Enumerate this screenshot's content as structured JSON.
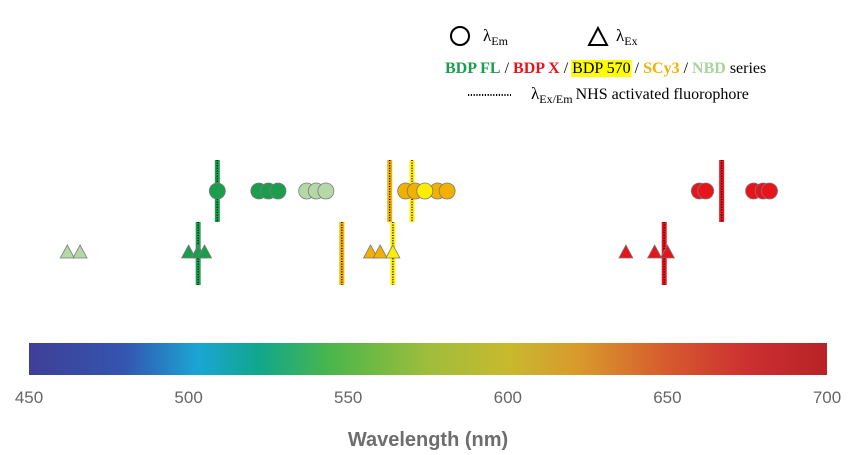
{
  "chart_data": {
    "type": "scatter",
    "xlabel": "Wavelength (nm)",
    "xlim": [
      450,
      700
    ],
    "xticks": [
      450,
      500,
      550,
      600,
      650,
      700
    ],
    "legend": {
      "placement": "top-right",
      "marker_entries": [
        {
          "marker": "circle",
          "symbol": "λ",
          "subscript": "Em"
        },
        {
          "marker": "triangle",
          "symbol": "λ",
          "subscript": "Ex"
        }
      ],
      "series_line": [
        {
          "text": "BDP FL",
          "color": "#1a9e4b",
          "bold": true
        },
        {
          "text": " / ",
          "color": "#000000",
          "bold": false
        },
        {
          "text": "BDP X",
          "color": "#e8141c",
          "bold": true
        },
        {
          "text": " / ",
          "color": "#000000",
          "bold": false
        },
        {
          "text": "BDP 570",
          "color": "#000000",
          "bold": false,
          "highlight": "#ffff00"
        },
        {
          "text": " / ",
          "color": "#000000",
          "bold": false
        },
        {
          "text": "SCy3",
          "color": "#f2b000",
          "bold": true
        },
        {
          "text": " / ",
          "color": "#000000",
          "bold": false
        },
        {
          "text": "NBD",
          "color": "#a8d49b",
          "bold": true
        },
        {
          "text": " series",
          "color": "#000000",
          "bold": false
        }
      ],
      "nhs_entry": {
        "symbol": "λ",
        "subscript": "Ex/Em",
        "text": "NHS activated fluorophore"
      }
    },
    "colorbar": {
      "range": [
        450,
        700
      ],
      "stops": [
        {
          "wl": 450,
          "color": "#3f3f96"
        },
        {
          "wl": 480,
          "color": "#3455b0"
        },
        {
          "wl": 503,
          "color": "#1aa6d4"
        },
        {
          "wl": 522,
          "color": "#10a78c"
        },
        {
          "wl": 545,
          "color": "#4cb64a"
        },
        {
          "wl": 575,
          "color": "#9fbd3c"
        },
        {
          "wl": 600,
          "color": "#c8b92e"
        },
        {
          "wl": 622,
          "color": "#d89a2c"
        },
        {
          "wl": 650,
          "color": "#d65a2e"
        },
        {
          "wl": 675,
          "color": "#cc3030"
        },
        {
          "wl": 700,
          "color": "#b82228"
        }
      ]
    },
    "series": [
      {
        "name": "BDP FL",
        "color": "#1a9e4b",
        "em": [
          509,
          522,
          525,
          528
        ],
        "ex": [
          500,
          503,
          505
        ],
        "nhs_em": 509,
        "nhs_ex": 503
      },
      {
        "name": "NBD",
        "color": "#b5d9a6",
        "em": [
          537,
          540,
          543
        ],
        "ex": [
          462,
          466
        ]
      },
      {
        "name": "BDP X",
        "color": "#e8141c",
        "em": [
          660,
          662,
          677,
          680,
          682
        ],
        "ex": [
          637,
          646,
          650
        ],
        "nhs_em": 667,
        "nhs_ex": 649
      },
      {
        "name": "SCy3",
        "color": "#f2b000",
        "em": [
          568,
          571,
          578,
          581
        ],
        "ex": [
          557,
          560
        ],
        "nhs_em": 563,
        "nhs_ex": 548
      },
      {
        "name": "BDP 570",
        "color": "#ffee00",
        "em": [
          574
        ],
        "ex": [
          564
        ],
        "nhs_em": 570,
        "nhs_ex": 564
      }
    ]
  }
}
